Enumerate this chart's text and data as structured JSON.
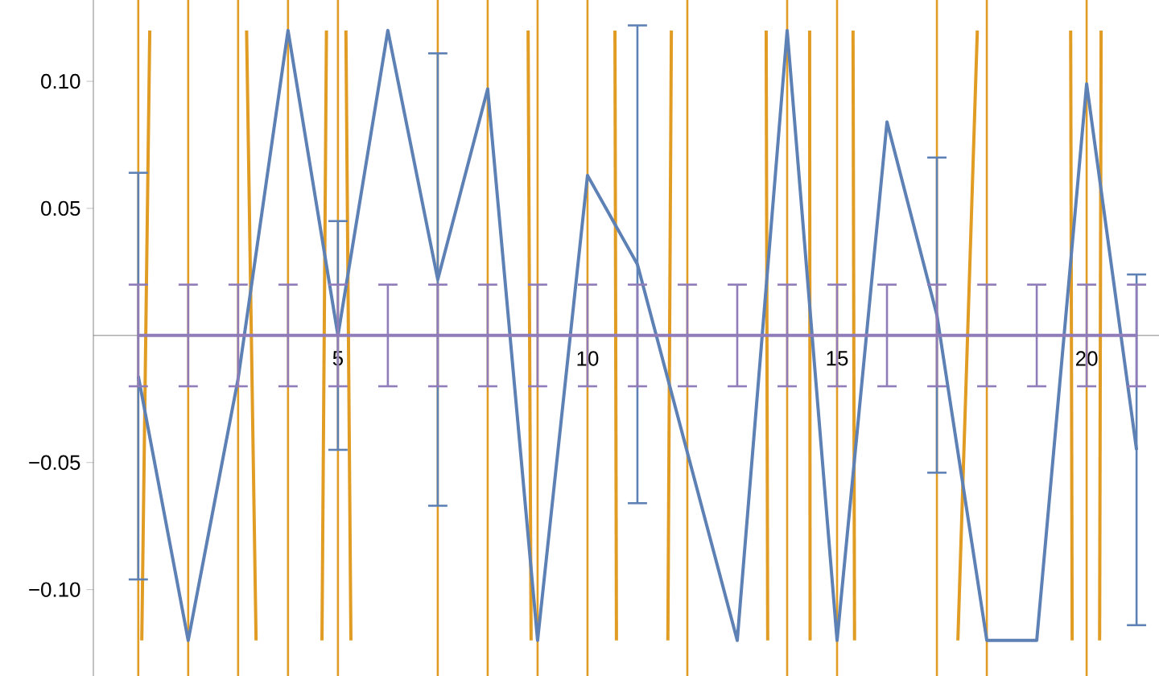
{
  "chart_data": {
    "type": "line",
    "xlim": [
      0.1,
      21.45
    ],
    "ylim": [
      -0.134,
      0.132
    ],
    "xticks": [
      5,
      10,
      15,
      20
    ],
    "yticks": [
      {
        "value": -0.1,
        "label": "−0.10"
      },
      {
        "value": -0.05,
        "label": "−0.05"
      },
      {
        "value": 0.05,
        "label": "0.05"
      },
      {
        "value": 0.1,
        "label": "0.10"
      }
    ],
    "marker": "none",
    "line_style": "solid",
    "grid": false,
    "series": [
      {
        "color": "#e19c24",
        "x": [
          1.07,
          1.23
        ],
        "values": [
          -0.12,
          0.12
        ]
      },
      {
        "color": "#e19c24",
        "x": [
          3.17,
          3.36
        ],
        "values": [
          0.12,
          -0.12
        ]
      },
      {
        "color": "#e19c24",
        "x": [
          4.68,
          4.77
        ],
        "values": [
          -0.12,
          0.12
        ]
      },
      {
        "color": "#e19c24",
        "x": [
          5.16,
          5.26
        ],
        "values": [
          0.12,
          -0.12
        ]
      },
      {
        "color": "#e19c24",
        "x": [
          8.81,
          8.87
        ],
        "values": [
          0.12,
          -0.12
        ]
      },
      {
        "color": "#e19c24",
        "x": [
          10.55,
          10.58
        ],
        "values": [
          0.12,
          -0.12
        ]
      },
      {
        "color": "#e19c24",
        "x": [
          11.68,
          11.61
        ],
        "values": [
          0.12,
          -0.12
        ]
      },
      {
        "color": "#e19c24",
        "x": [
          13.58,
          13.61
        ],
        "values": [
          0.12,
          -0.12
        ]
      },
      {
        "color": "#e19c24",
        "x": [
          14.45,
          14.46
        ],
        "values": [
          0.12,
          -0.12
        ]
      },
      {
        "color": "#e19c24",
        "x": [
          15.32,
          15.35
        ],
        "values": [
          0.12,
          -0.12
        ]
      },
      {
        "color": "#e19c24",
        "x": [
          17.42,
          17.81
        ],
        "values": [
          -0.12,
          0.12
        ]
      },
      {
        "color": "#e19c24",
        "x": [
          19.68,
          19.71
        ],
        "values": [
          0.12,
          -0.12
        ]
      },
      {
        "color": "#e19c24",
        "x": [
          20.29,
          20.26
        ],
        "values": [
          0.12,
          -0.12
        ]
      },
      {
        "color": "#5e81b5",
        "x": [
          1,
          2,
          3,
          4,
          5,
          6,
          7,
          8,
          9,
          10,
          11,
          12,
          13,
          14,
          15,
          16,
          17,
          18,
          19,
          20,
          21
        ],
        "values": [
          -0.016,
          -0.12,
          -0.017,
          0.12,
          0.0,
          0.12,
          0.022,
          0.097,
          -0.12,
          0.063,
          0.028,
          -0.046,
          -0.12,
          0.12,
          -0.12,
          0.084,
          0.008,
          -0.12,
          -0.12,
          0.099,
          -0.045
        ],
        "errors": [
          0.08,
          null,
          null,
          null,
          0.045,
          null,
          0.089,
          null,
          null,
          null,
          0.094,
          null,
          null,
          null,
          null,
          null,
          0.062,
          null,
          null,
          null,
          0.069
        ]
      },
      {
        "color": "#8f7cb8",
        "x": [
          1,
          2,
          3,
          4,
          5,
          6,
          7,
          8,
          9,
          10,
          11,
          12,
          13,
          14,
          15,
          16,
          17,
          18,
          19,
          20,
          21
        ],
        "values": [
          0,
          0,
          0,
          0,
          0,
          0,
          0,
          0,
          0,
          0,
          0,
          0,
          0,
          0,
          0,
          0,
          0,
          0,
          0,
          0,
          0
        ],
        "errors": [
          0.02,
          0.02,
          0.02,
          0.02,
          0.02,
          0.02,
          0.02,
          0.02,
          0.02,
          0.02,
          0.02,
          0.02,
          0.02,
          0.02,
          0.02,
          0.02,
          0.02,
          0.02,
          0.02,
          0.02,
          0.02
        ]
      }
    ],
    "ref_lines": [
      {
        "axis": "x",
        "value": 1,
        "color": "#e19c24"
      },
      {
        "axis": "x",
        "value": 2,
        "color": "#e19c24"
      },
      {
        "axis": "x",
        "value": 3,
        "color": "#e19c24"
      },
      {
        "axis": "x",
        "value": 4,
        "color": "#e19c24"
      },
      {
        "axis": "x",
        "value": 5,
        "color": "#e19c24"
      },
      {
        "axis": "x",
        "value": 7,
        "color": "#e19c24"
      },
      {
        "axis": "x",
        "value": 8,
        "color": "#e19c24"
      },
      {
        "axis": "x",
        "value": 9,
        "color": "#e19c24"
      },
      {
        "axis": "x",
        "value": 10,
        "color": "#e19c24"
      },
      {
        "axis": "x",
        "value": 12,
        "color": "#e19c24"
      },
      {
        "axis": "x",
        "value": 14,
        "color": "#e19c24"
      },
      {
        "axis": "x",
        "value": 15,
        "color": "#e19c24"
      },
      {
        "axis": "x",
        "value": 17,
        "color": "#e19c24"
      },
      {
        "axis": "x",
        "value": 18,
        "color": "#e19c24"
      },
      {
        "axis": "x",
        "value": 20,
        "color": "#e19c24"
      }
    ]
  }
}
